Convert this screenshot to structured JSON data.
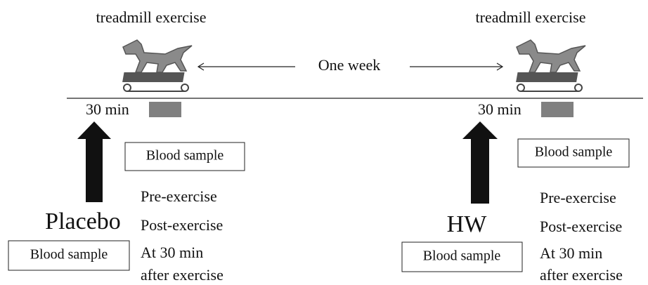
{
  "interval": "One week",
  "arms": [
    {
      "label": "Placebo",
      "exercise": "treadmill exercise",
      "duration": "30 min",
      "post_sample": "Blood sample",
      "arm_sample": "Blood sample",
      "timepoints": [
        "Pre-exercise",
        "Post-exercise",
        "At 30 min",
        "after exercise"
      ]
    },
    {
      "label": "HW",
      "exercise": "treadmill exercise",
      "duration": "30 min",
      "post_sample": "Blood sample",
      "arm_sample": "Blood sample",
      "timepoints": [
        "Pre-exercise",
        "Post-exercise",
        "At 30 min",
        "after exercise"
      ]
    }
  ]
}
